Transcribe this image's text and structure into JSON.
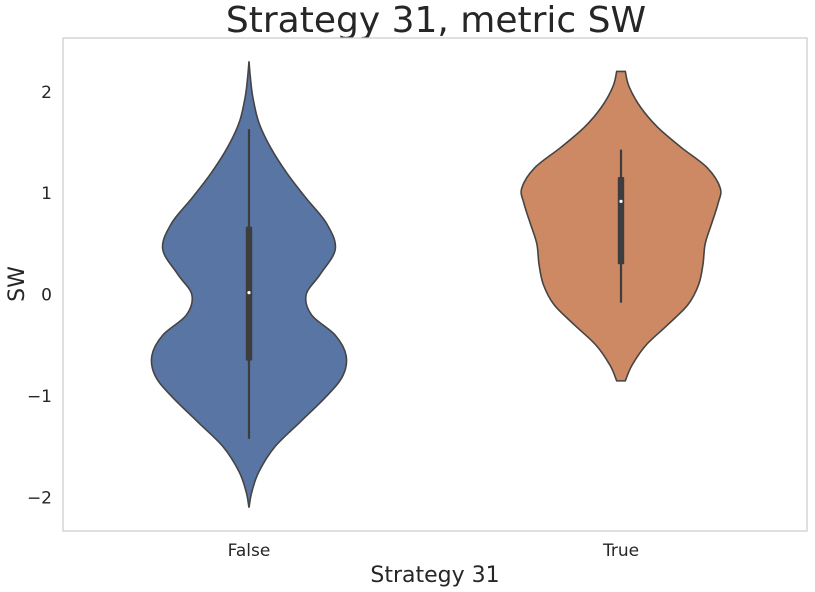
{
  "chart_data": {
    "type": "violin",
    "title": "Strategy 31, metric SW",
    "xlabel": "Strategy 31",
    "ylabel": "SW",
    "categories": [
      "False",
      "True"
    ],
    "yticks": [
      -2,
      -1,
      0,
      1,
      2
    ],
    "ytick_labels": [
      "−2",
      "−1",
      "0",
      "1",
      "2"
    ],
    "ylim": [
      -2.33,
      2.53
    ],
    "grid": false,
    "colors": {
      "False": "#5975a4",
      "True": "#cc8963",
      "outline": "#444444",
      "box": "#3d3d3d"
    },
    "series": [
      {
        "category": "False",
        "min": -2.1,
        "max": 2.3,
        "whisker_low": -1.42,
        "whisker_high": 1.63,
        "q1": -0.65,
        "median": 0.02,
        "q3": 0.67,
        "density": [
          [
            -2.1,
            0.0
          ],
          [
            -1.95,
            0.025
          ],
          [
            -1.75,
            0.09
          ],
          [
            -1.5,
            0.24
          ],
          [
            -1.25,
            0.48
          ],
          [
            -1.0,
            0.72
          ],
          [
            -0.8,
            0.87
          ],
          [
            -0.6,
            0.9
          ],
          [
            -0.4,
            0.8
          ],
          [
            -0.2,
            0.58
          ],
          [
            0.0,
            0.53
          ],
          [
            0.2,
            0.66
          ],
          [
            0.45,
            0.8
          ],
          [
            0.7,
            0.72
          ],
          [
            0.95,
            0.53
          ],
          [
            1.2,
            0.35
          ],
          [
            1.45,
            0.2
          ],
          [
            1.7,
            0.09
          ],
          [
            1.95,
            0.035
          ],
          [
            2.15,
            0.012
          ],
          [
            2.3,
            0.0
          ]
        ]
      },
      {
        "category": "True",
        "min": -0.85,
        "max": 2.2,
        "whisker_low": -0.08,
        "whisker_high": 1.43,
        "q1": 0.3,
        "median": 0.92,
        "q3": 1.16,
        "density": [
          [
            -0.85,
            0.04
          ],
          [
            -0.7,
            0.1
          ],
          [
            -0.5,
            0.23
          ],
          [
            -0.3,
            0.43
          ],
          [
            -0.1,
            0.62
          ],
          [
            0.1,
            0.72
          ],
          [
            0.3,
            0.76
          ],
          [
            0.5,
            0.78
          ],
          [
            0.7,
            0.84
          ],
          [
            0.9,
            0.9
          ],
          [
            1.05,
            0.92
          ],
          [
            1.25,
            0.8
          ],
          [
            1.45,
            0.56
          ],
          [
            1.65,
            0.34
          ],
          [
            1.85,
            0.18
          ],
          [
            2.05,
            0.075
          ],
          [
            2.2,
            0.04
          ]
        ]
      }
    ]
  }
}
